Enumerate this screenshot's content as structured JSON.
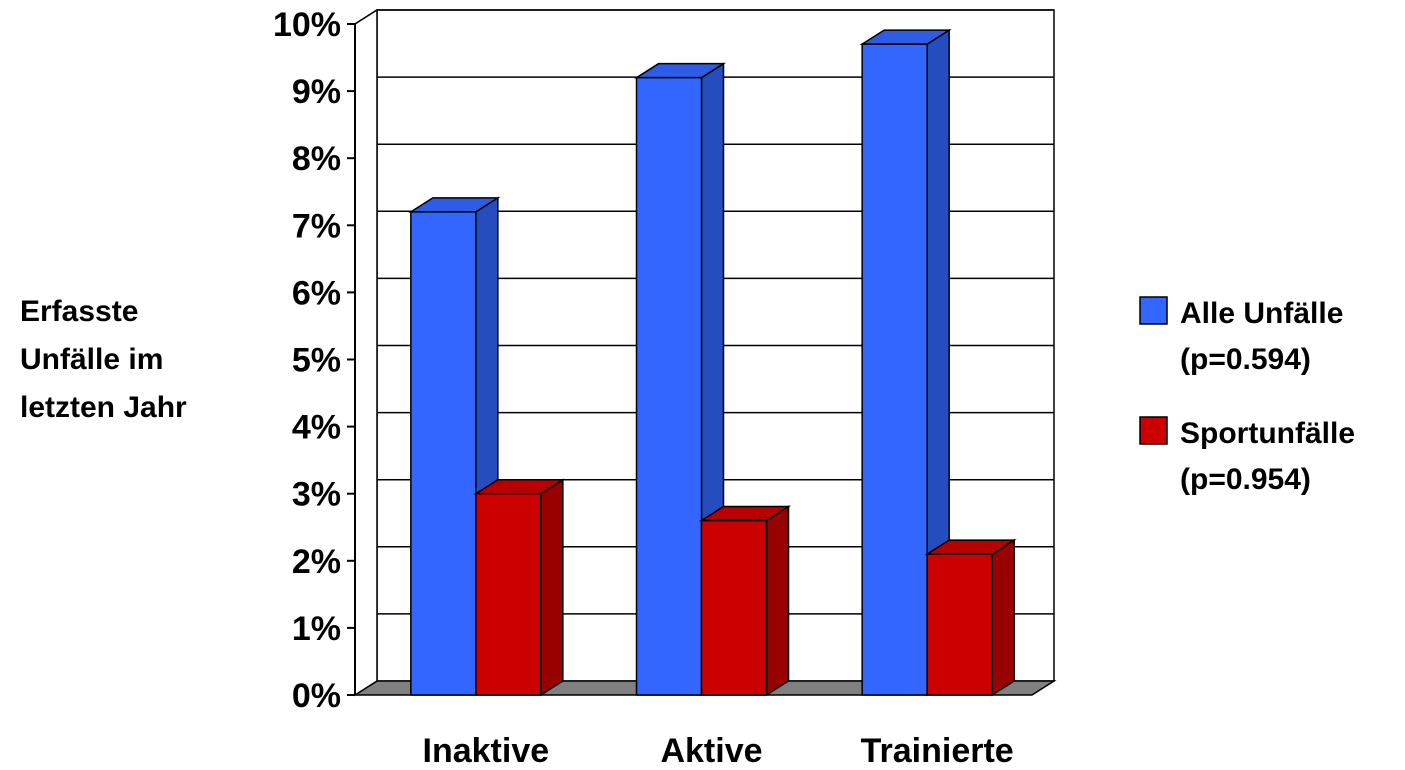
{
  "chart_data": {
    "type": "bar",
    "style": "3d-clustered-column",
    "categories": [
      "Inaktive",
      "Aktive",
      "Trainierte"
    ],
    "series": [
      {
        "name": "Alle Unfälle",
        "name_line2": "(p=0.594)",
        "color": "#3366FF",
        "values": [
          7.2,
          9.2,
          9.7
        ]
      },
      {
        "name": "Sportunfälle",
        "name_line2": "(p=0.954)",
        "color": "#CC0000",
        "values": [
          3.0,
          2.6,
          2.1
        ]
      }
    ],
    "ylabel_lines": [
      "Erfasste",
      "Unfälle im",
      "letzten Jahr"
    ],
    "ylim": [
      0,
      10
    ],
    "yticks": [
      "0%",
      "1%",
      "2%",
      "3%",
      "4%",
      "5%",
      "6%",
      "7%",
      "8%",
      "9%",
      "10%"
    ],
    "grid": true,
    "legend": "right",
    "floor_color": "#808080"
  }
}
